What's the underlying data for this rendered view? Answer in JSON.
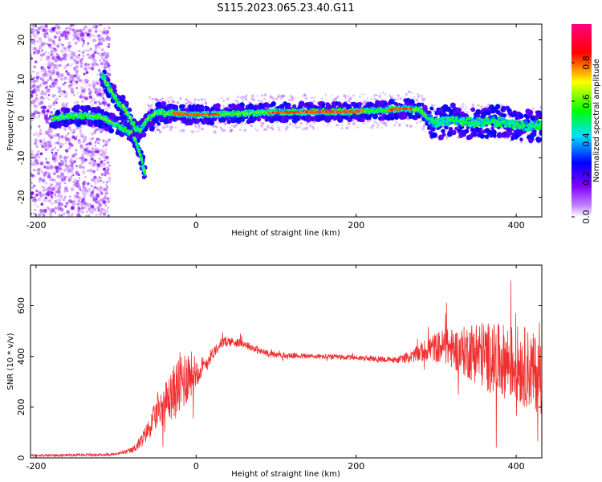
{
  "figure": {
    "title": "S115.2023.065.23.40.G11"
  },
  "chart_data": [
    {
      "type": "heatmap",
      "xlabel": "Height of straight line (km)",
      "ylabel": "Frequency (Hz)",
      "xlim": [
        -207,
        432
      ],
      "ylim": [
        -25,
        24
      ],
      "xticks": [
        -200,
        0,
        200,
        400
      ],
      "yticks": [
        -20,
        -10,
        0,
        10,
        20
      ],
      "colorbar": {
        "label": "Normalized spectral amplitude",
        "range": [
          0,
          1
        ],
        "ticks": [
          "0.0",
          "0.2",
          "0.4",
          "0.6",
          "0.8"
        ],
        "colormap": [
          "#ffffff",
          "#8000ff",
          "#0000ff",
          "#00e0ff",
          "#00ff00",
          "#ffff00",
          "#ff0000",
          "#ff0080"
        ]
      },
      "traces": [
        {
          "x": [
            -180,
            -160,
            -140,
            -120,
            -100,
            -80,
            -70,
            -60,
            -50,
            -40,
            -30,
            -20,
            -10,
            0,
            20
          ],
          "y": [
            0,
            0.5,
            0.8,
            0.4,
            -1.5,
            -4,
            -3,
            -1,
            0,
            1.2,
            1.4,
            1.2,
            1.0,
            1.0,
            1.0
          ]
        },
        {
          "x": [
            -118,
            -105,
            -90,
            -78,
            -70,
            -64
          ],
          "y": [
            11,
            6.5,
            2,
            -4,
            -9,
            -14
          ]
        },
        {
          "x": [
            -92,
            -82,
            -76,
            -70,
            -66,
            -60,
            -50,
            -40
          ],
          "y": [
            3.5,
            0,
            -2.5,
            -2.8,
            -2,
            0,
            1.5,
            1.8
          ]
        },
        {
          "x": [
            20,
            60,
            100,
            150,
            200,
            240,
            260,
            280,
            290,
            300,
            320,
            350,
            380,
            400,
            420,
            432
          ],
          "y": [
            1.0,
            1.3,
            1.6,
            1.7,
            1.8,
            2.2,
            2.6,
            2.1,
            0,
            -1.2,
            -0.5,
            -1.0,
            -0.8,
            -1.5,
            -2.0,
            -1.5
          ]
        }
      ]
    },
    {
      "type": "line",
      "xlabel": "Height of straight line (km)",
      "ylabel": "SNR (10 * v/v)",
      "xlim": [
        -207,
        432
      ],
      "ylim": [
        0,
        760
      ],
      "xticks": [
        -200,
        0,
        200,
        400
      ],
      "yticks": [
        0,
        200,
        400,
        600
      ],
      "color": "#f03030",
      "series": [
        {
          "x": [
            -207,
            -180,
            -150,
            -120,
            -100,
            -80,
            -70,
            -60,
            -50,
            -40,
            -30,
            -20,
            -10,
            0,
            10,
            20,
            30,
            40,
            60,
            80,
            100,
            150,
            200,
            250,
            270,
            290,
            310,
            330,
            350,
            370,
            390,
            410,
            432
          ],
          "y": [
            10,
            10,
            12,
            12,
            15,
            30,
            60,
            110,
            170,
            210,
            250,
            290,
            330,
            340,
            360,
            410,
            450,
            460,
            450,
            420,
            405,
            400,
            395,
            385,
            400,
            430,
            440,
            420,
            420,
            390,
            380,
            360,
            320
          ],
          "noise": [
            5,
            5,
            5,
            5,
            5,
            12,
            25,
            40,
            60,
            80,
            100,
            130,
            110,
            60,
            40,
            25,
            20,
            20,
            15,
            15,
            12,
            10,
            10,
            12,
            25,
            50,
            70,
            90,
            130,
            140,
            150,
            160,
            150
          ]
        }
      ]
    }
  ]
}
